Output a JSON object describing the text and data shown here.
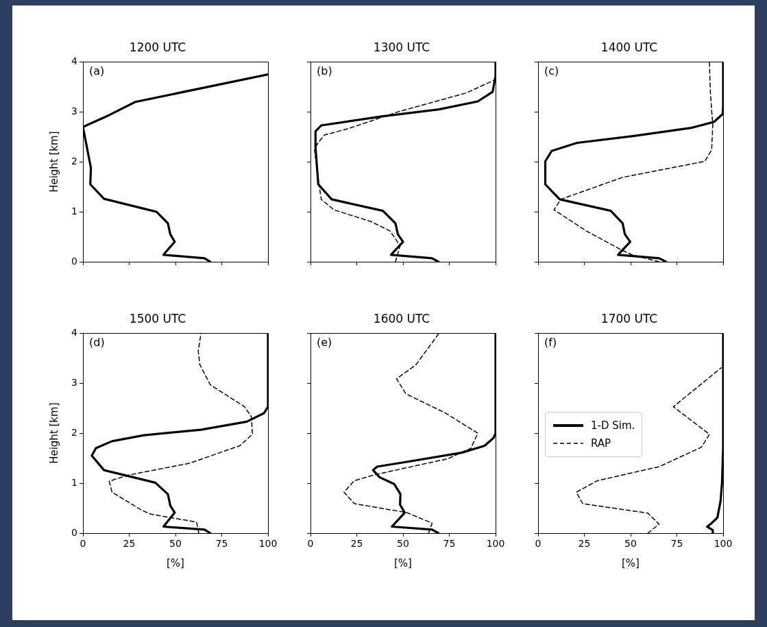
{
  "chart_data": [
    {
      "type": "line",
      "orientation": "horizontal",
      "title": "1200 UTC",
      "ylabel": "Height [km]",
      "annotations": [
        "(a)"
      ],
      "xlim": [
        0,
        100
      ],
      "xticks": [
        0,
        25,
        50,
        75,
        100
      ],
      "ylim": [
        0,
        4
      ],
      "yticks": [
        0,
        1,
        2,
        3,
        4
      ],
      "tick_labels": "y",
      "marker": "none",
      "series": [
        {
          "color": "#000000",
          "line_style": "solid",
          "x": [
            0,
            0.07,
            0.14,
            0.4,
            0.55,
            0.77,
            1.0,
            1.26,
            1.55,
            1.88,
            2.7,
            2.94,
            3.2,
            3.75
          ],
          "values": [
            68.8,
            65.7,
            43.5,
            49.6,
            47.2,
            45.9,
            39.8,
            11.4,
            4.0,
            4.3,
            0,
            14.4,
            28.3,
            100
          ]
        }
      ]
    },
    {
      "type": "line",
      "orientation": "horizontal",
      "title": "1300 UTC",
      "annotations": [
        "(b)"
      ],
      "xlim": [
        0,
        100
      ],
      "xticks": [
        0,
        25,
        50,
        75,
        100
      ],
      "ylim": [
        0,
        4
      ],
      "yticks": [
        0,
        1,
        2,
        3,
        4
      ],
      "tick_labels": false,
      "marker": "none",
      "series": [
        {
          "color": "#000000",
          "line_style": "solid",
          "x": [
            0,
            0.07,
            0.14,
            0.4,
            0.55,
            0.77,
            1.02,
            1.25,
            1.55,
            2.29,
            2.61,
            2.73,
            2.91,
            3.05,
            3.21,
            3.4,
            3.72,
            4
          ],
          "values": [
            69.1,
            65.7,
            43.5,
            50,
            47.2,
            45.9,
            39.1,
            11.4,
            4.2,
            2.7,
            2.7,
            5.8,
            38.5,
            69.4,
            90.4,
            98.4,
            100,
            100
          ]
        },
        {
          "color": "#000000",
          "line_style": "dashed",
          "x": [
            0,
            0.32,
            0.46,
            0.62,
            0.81,
            1.04,
            1.25,
            1.55,
            2.24,
            2.38,
            2.54,
            2.66,
            3.0,
            3.38,
            3.64
          ],
          "values": [
            45.9,
            48.4,
            45.9,
            42.8,
            32.3,
            12.6,
            5.8,
            4.6,
            2.2,
            4.0,
            7.7,
            20,
            47.2,
            84.2,
            99.5
          ]
        }
      ]
    },
    {
      "type": "line",
      "orientation": "horizontal",
      "title": "1400 UTC",
      "annotations": [
        "(c)"
      ],
      "xlim": [
        0,
        100
      ],
      "xticks": [
        0,
        25,
        50,
        75,
        100
      ],
      "ylim": [
        0,
        4
      ],
      "yticks": [
        0,
        1,
        2,
        3,
        4
      ],
      "tick_labels": false,
      "marker": "none",
      "series": [
        {
          "color": "#000000",
          "line_style": "solid",
          "x": [
            0,
            0.07,
            0.14,
            0.4,
            0.55,
            0.77,
            1.02,
            1.25,
            1.55,
            2.01,
            2.22,
            2.38,
            2.52,
            2.68,
            2.8,
            2.96,
            3.12,
            4
          ],
          "values": [
            69.1,
            65.4,
            43.2,
            49.8,
            46.9,
            45.7,
            39.3,
            11.7,
            3.9,
            3.9,
            7.4,
            21,
            51.9,
            82.7,
            95.1,
            99.8,
            100,
            100
          ]
        },
        {
          "color": "#000000",
          "line_style": "dashed",
          "x": [
            0,
            0.14,
            0.25,
            0.62,
            1.04,
            1.25,
            1.69,
            2.01,
            2.24,
            2.75,
            3.03,
            3.4,
            3.98
          ],
          "values": [
            65.4,
            50.6,
            44.4,
            25.9,
            8.6,
            12.3,
            45.7,
            90.1,
            93.8,
            94.4,
            93.8,
            93.1,
            92.6
          ]
        }
      ]
    },
    {
      "type": "line",
      "orientation": "horizontal",
      "title": "1500 UTC",
      "xlabel": "[%]",
      "ylabel": "Height [km]",
      "annotations": [
        "(d)"
      ],
      "xlim": [
        0,
        100
      ],
      "xticks": [
        0,
        25,
        50,
        75,
        100
      ],
      "ylim": [
        0,
        4
      ],
      "yticks": [
        0,
        1,
        2,
        3,
        4
      ],
      "marker": "none",
      "series": [
        {
          "color": "#000000",
          "line_style": "solid",
          "x": [
            0,
            0.07,
            0.13,
            0.41,
            0.55,
            0.78,
            1.01,
            1.26,
            1.55,
            1.7,
            1.84,
            1.96,
            2.07,
            2.23,
            2.4,
            2.53,
            4
          ],
          "values": [
            68.8,
            65.7,
            43.5,
            49.6,
            47.2,
            45.9,
            39.1,
            11.4,
            4.8,
            7.0,
            15.7,
            33.0,
            63.8,
            88.5,
            97.8,
            100,
            100
          ]
        },
        {
          "color": "#000000",
          "line_style": "dashed",
          "x": [
            0,
            0.22,
            0.38,
            0.46,
            0.82,
            1.04,
            1.16,
            1.4,
            1.75,
            1.98,
            2.33,
            2.53,
            2.97,
            3.37,
            3.64,
            4
          ],
          "values": [
            62.6,
            61.4,
            36.7,
            31.7,
            15.7,
            14.2,
            24.3,
            57.7,
            84.8,
            91.6,
            91.0,
            87.3,
            68.8,
            63.2,
            62.3,
            63.8
          ]
        }
      ]
    },
    {
      "type": "line",
      "orientation": "horizontal",
      "title": "1600 UTC",
      "xlabel": "[%]",
      "annotations": [
        "(e)"
      ],
      "xlim": [
        0,
        100
      ],
      "xticks": [
        0,
        25,
        50,
        75,
        100
      ],
      "ylim": [
        0,
        4
      ],
      "yticks": [
        0,
        1,
        2,
        3,
        4
      ],
      "tick_labels": "x",
      "marker": "none",
      "series": [
        {
          "color": "#000000",
          "line_style": "solid",
          "x": [
            0,
            0.07,
            0.13,
            0.41,
            0.57,
            0.78,
            0.98,
            1.12,
            1.26,
            1.33,
            1.42,
            1.61,
            1.75,
            1.91,
            2.0,
            4
          ],
          "values": [
            69.1,
            65.7,
            44.0,
            50.9,
            48.4,
            48.6,
            45.3,
            37.3,
            33.8,
            36.0,
            50.9,
            81.7,
            94.1,
            99.0,
            100,
            100
          ]
        },
        {
          "color": "#000000",
          "line_style": "dashed",
          "x": [
            0,
            0.2,
            0.41,
            0.59,
            0.82,
            1.05,
            1.17,
            1.49,
            1.7,
            2.0,
            2.4,
            2.79,
            3.09,
            3.37,
            4
          ],
          "values": [
            63.8,
            65.7,
            52.1,
            23.7,
            18.1,
            23.7,
            34.8,
            74.3,
            86.7,
            90.4,
            73.1,
            51.5,
            46.5,
            57.0,
            69.4
          ]
        }
      ]
    },
    {
      "type": "line",
      "orientation": "horizontal",
      "title": "1700 UTC",
      "xlabel": "[%]",
      "annotations": [
        "(f)"
      ],
      "xlim": [
        0,
        100
      ],
      "xticks": [
        0,
        25,
        50,
        75,
        100
      ],
      "ylim": [
        0,
        4
      ],
      "yticks": [
        0,
        1,
        2,
        3,
        4
      ],
      "tick_labels": "x",
      "marker": "none",
      "legend": "left",
      "series": [
        {
          "name": "1-D Sim.",
          "color": "#000000",
          "line_style": "solid",
          "x": [
            0,
            0.06,
            0.13,
            0.2,
            0.31,
            0.64,
            1.01,
            1.7,
            4
          ],
          "values": [
            94.4,
            94.4,
            91.4,
            93.8,
            96.9,
            98.6,
            99.4,
            100,
            100
          ]
        },
        {
          "name": "RAP",
          "color": "#000000",
          "line_style": "dashed",
          "x": [
            0,
            0.18,
            0.4,
            0.59,
            0.82,
            1.05,
            1.33,
            1.72,
            1.98,
            2.53,
            3.31
          ],
          "values": [
            59.3,
            65.4,
            59.3,
            24.1,
            20.7,
            32.1,
            65.4,
            88.3,
            92.6,
            73.1,
            99.0
          ]
        }
      ]
    }
  ]
}
